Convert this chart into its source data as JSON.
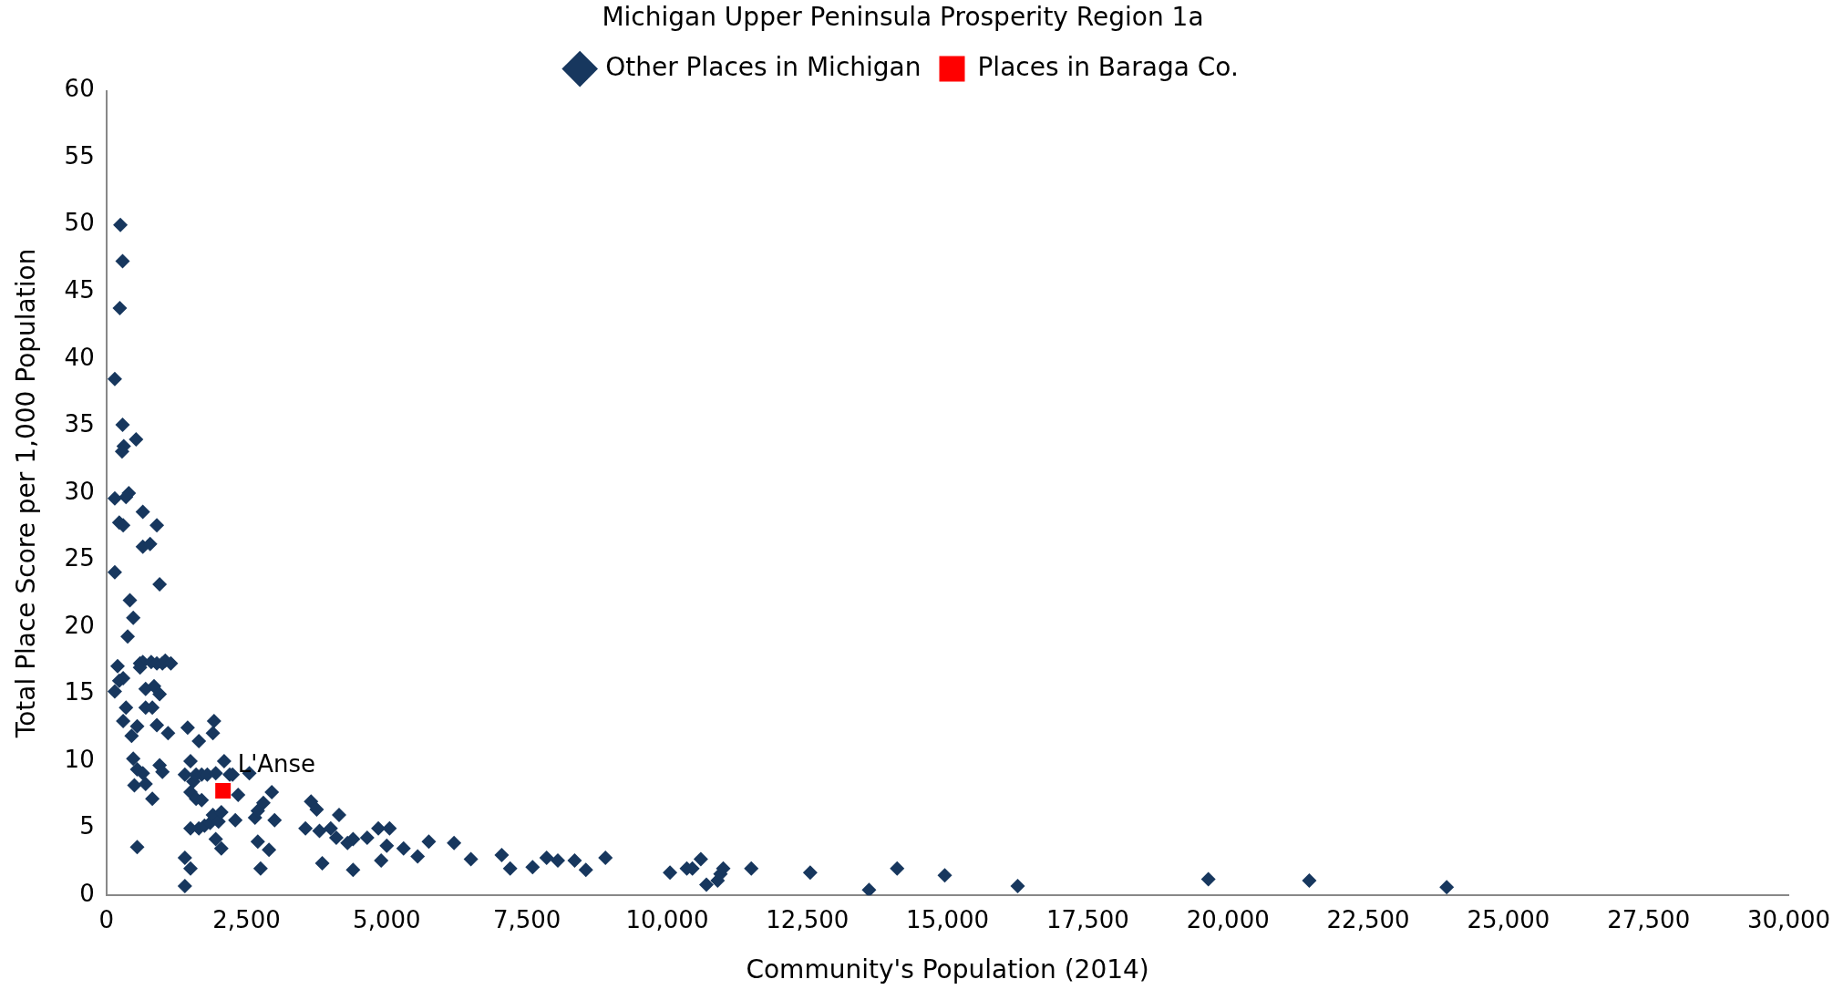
{
  "chart_data": {
    "type": "scatter",
    "title": "Michigan Upper Peninsula Prosperity Region 1a",
    "xlabel": "Community's Population (2014)",
    "ylabel": "Total Place Score per 1,000 Population",
    "xlim": [
      0,
      30000
    ],
    "xticks": [
      0,
      {
        "value": 2500,
        "label": "2,500"
      },
      {
        "value": 5000,
        "label": "5,000"
      },
      {
        "value": 7500,
        "label": "7,500"
      },
      {
        "value": 10000,
        "label": "10,000"
      },
      {
        "value": 12500,
        "label": "12,500"
      },
      {
        "value": 15000,
        "label": "15,000"
      },
      {
        "value": 17500,
        "label": "17,500"
      },
      {
        "value": 20000,
        "label": "20,000"
      },
      {
        "value": 22500,
        "label": "22,500"
      },
      {
        "value": 25000,
        "label": "25,000"
      },
      {
        "value": 27500,
        "label": "27,500"
      },
      {
        "value": 30000,
        "label": "30,000"
      }
    ],
    "ylim": [
      0,
      60
    ],
    "yticks": [
      0,
      5,
      10,
      15,
      20,
      25,
      30,
      35,
      40,
      45,
      50,
      55,
      60
    ],
    "grid": false,
    "legend": "top",
    "annotations": [
      {
        "text": "L'Anse",
        "x": 2080,
        "y": 7.8
      }
    ],
    "series": [
      {
        "name": "Other Places in Michigan",
        "color": "#17375e",
        "marker": "diamond",
        "x": [
          250,
          290,
          240,
          150,
          290,
          530,
          310,
          280,
          400,
          350,
          150,
          230,
          300,
          900,
          650,
          650,
          780,
          950,
          150,
          420,
          480,
          380,
          200,
          150,
          300,
          230,
          600,
          650,
          800,
          900,
          1000,
          1050,
          1150,
          600,
          700,
          850,
          950,
          350,
          700,
          820,
          300,
          550,
          450,
          900,
          1100,
          1450,
          1650,
          1900,
          1920,
          480,
          550,
          650,
          500,
          700,
          820,
          950,
          1000,
          550,
          1400,
          1500,
          1550,
          1600,
          1700,
          1800,
          1950,
          2100,
          2200,
          2250,
          1500,
          1600,
          1700,
          1650,
          1500,
          1750,
          1850,
          1900,
          2000,
          2050,
          1950,
          2050,
          2350,
          2300,
          2550,
          2650,
          2700,
          2800,
          2950,
          3000,
          2700,
          2900,
          2750,
          1400,
          1500,
          1400,
          3550,
          3650,
          3750,
          3800,
          3850,
          4000,
          4100,
          4150,
          4300,
          4400,
          4400,
          4650,
          4850,
          4900,
          5000,
          5050,
          5300,
          5550,
          5750,
          6200,
          6500,
          7050,
          7200,
          7600,
          7850,
          8050,
          8350,
          8550,
          8900,
          10050,
          10350,
          10450,
          10600,
          10700,
          10900,
          10950,
          11000,
          11500,
          12550,
          13600,
          14100,
          14950,
          16250,
          19650,
          21450,
          23900
        ],
        "values": [
          50,
          47.3,
          43.8,
          38.5,
          35.1,
          34,
          33.5,
          33.1,
          30,
          29.7,
          29.6,
          27.8,
          27.6,
          27.6,
          28.6,
          26,
          26.2,
          23.2,
          24.1,
          22,
          20.7,
          19.3,
          17.1,
          15.2,
          16.2,
          16,
          17.3,
          17.4,
          17.4,
          17.3,
          17.3,
          17.5,
          17.3,
          17,
          15.4,
          15.6,
          15,
          14,
          14,
          14,
          13,
          12.6,
          11.9,
          12.7,
          12.1,
          12.5,
          11.5,
          12.1,
          13,
          10.2,
          9.4,
          9.1,
          8.2,
          8.3,
          7.2,
          9.7,
          9.2,
          3.6,
          9,
          10,
          8.5,
          9,
          9,
          9,
          9.1,
          10,
          9,
          9,
          7.7,
          7.2,
          7.1,
          5,
          5,
          5.2,
          5.4,
          6,
          5.5,
          6.2,
          4.2,
          3.5,
          7.5,
          5.6,
          9.1,
          5.8,
          6.3,
          6.9,
          7.7,
          5.6,
          4,
          3.4,
          2,
          2.8,
          2,
          0.7,
          5,
          7,
          6.4,
          4.8,
          2.4,
          5,
          4.3,
          6,
          3.9,
          4.2,
          1.9,
          4.3,
          5,
          2.6,
          3.7,
          5,
          3.5,
          2.9,
          4,
          3.9,
          2.7,
          3,
          2,
          2.1,
          2.8,
          2.6,
          2.6,
          1.9,
          2.8,
          1.7,
          2,
          2,
          2.7,
          0.8,
          1.1,
          1.6,
          2,
          2,
          1.7,
          0.4,
          2,
          1.5,
          0.7,
          1.2,
          1.1,
          0.6
        ]
      },
      {
        "name": "Places in Baraga Co.",
        "color": "#ff0000",
        "marker": "square",
        "x": [
          2080
        ],
        "values": [
          7.8
        ]
      }
    ]
  }
}
